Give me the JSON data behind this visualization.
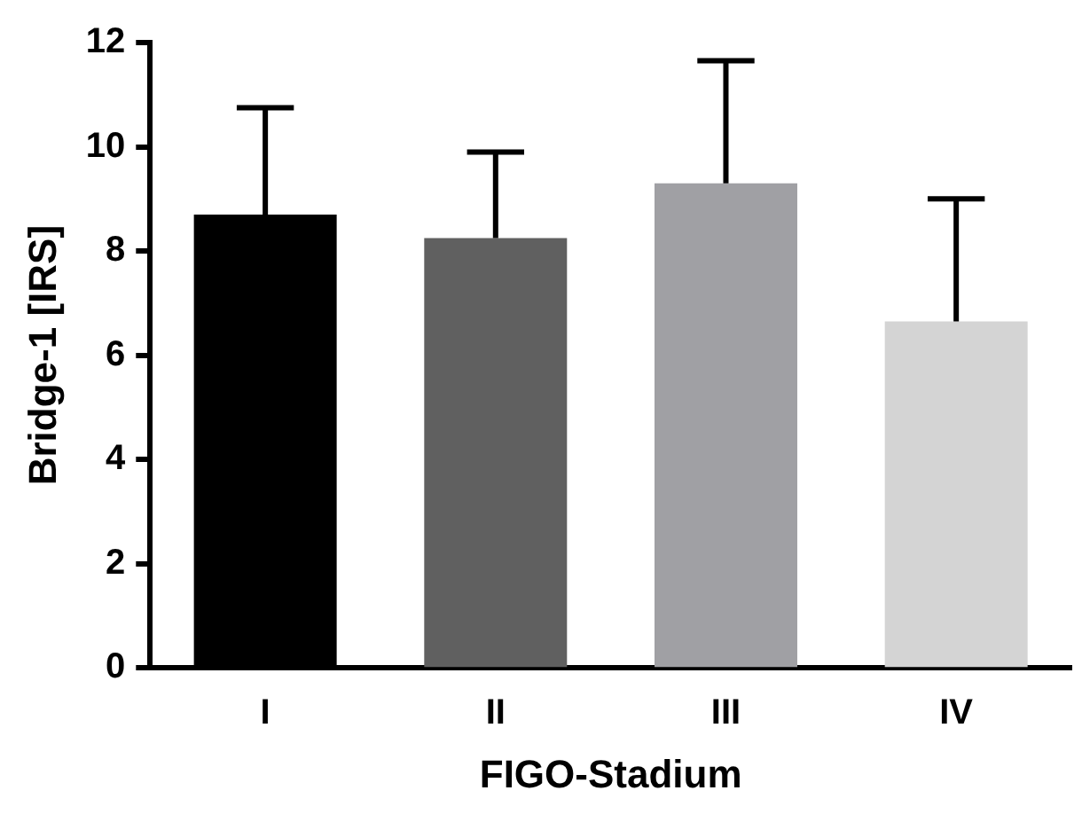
{
  "chart_data": {
    "type": "bar",
    "xlabel": "FIGO-Stadium",
    "ylabel": "Bridge-1 [IRS]",
    "categories": [
      "I",
      "II",
      "III",
      "IV"
    ],
    "values": [
      8.7,
      8.25,
      9.3,
      6.65
    ],
    "colors": [
      "#000000",
      "#606060",
      "#a0a0a4",
      "#d4d4d4"
    ],
    "errors": [
      [
        8.7,
        10.75
      ],
      [
        8.25,
        9.9
      ],
      [
        9.3,
        11.65
      ],
      [
        6.65,
        9.0
      ]
    ],
    "ylim": [
      0,
      12
    ],
    "yticks": [
      0,
      2,
      4,
      6,
      8,
      10,
      12
    ],
    "grid": false,
    "legend": false
  }
}
